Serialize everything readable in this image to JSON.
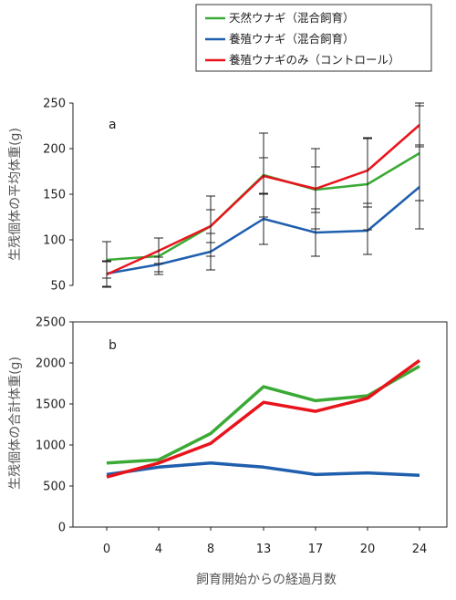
{
  "chart_data": [
    {
      "id": "a",
      "type": "line",
      "panel_label": "a",
      "ylabel": "生残個体の平均体重(g)",
      "xlabel": "",
      "categories": [
        "0",
        "4",
        "8",
        "13",
        "17",
        "20",
        "24"
      ],
      "ylim": [
        50,
        250
      ],
      "yticks": [
        50,
        100,
        150,
        200,
        250
      ],
      "error_bars": true,
      "series": [
        {
          "name": "天然ウナギ（混合飼育）",
          "color": "#3aaa35",
          "values": [
            78,
            82,
            115,
            171,
            155,
            161,
            195
          ],
          "error": [
            20,
            20,
            18,
            46,
            25,
            50,
            52
          ]
        },
        {
          "name": "養殖ウナギ（混合飼育）",
          "color": "#1f5fae",
          "values": [
            63,
            73,
            87,
            123,
            108,
            110,
            158
          ],
          "error": [
            14,
            8,
            20,
            28,
            26,
            26,
            46
          ]
        },
        {
          "name": "養殖ウナギのみ（コントロール）",
          "color": "#e8141c",
          "values": [
            62,
            88,
            115,
            170,
            156,
            176,
            226
          ],
          "error": [
            14,
            14,
            33,
            20,
            44,
            36,
            24
          ]
        }
      ]
    },
    {
      "id": "b",
      "type": "line",
      "panel_label": "b",
      "ylabel": "生残個体の合計体重(g)",
      "xlabel": "飼育開始からの経過月数",
      "categories": [
        "0",
        "4",
        "8",
        "13",
        "17",
        "20",
        "24"
      ],
      "ylim": [
        0,
        2500
      ],
      "yticks": [
        0,
        500,
        1000,
        1500,
        2000,
        2500
      ],
      "series": [
        {
          "name": "天然ウナギ（混合飼育）",
          "color": "#3aaa35",
          "values": [
            780,
            820,
            1140,
            1710,
            1540,
            1600,
            1960
          ]
        },
        {
          "name": "養殖ウナギ（混合飼育）",
          "color": "#1f5fae",
          "values": [
            640,
            730,
            780,
            730,
            640,
            660,
            630
          ]
        },
        {
          "name": "養殖ウナギのみ（コントロール）",
          "color": "#e8141c",
          "values": [
            610,
            780,
            1020,
            1520,
            1410,
            1570,
            2030
          ]
        }
      ]
    }
  ],
  "legend": {
    "placement": "top-right",
    "items": [
      {
        "label": "天然ウナギ（混合飼育）",
        "color": "#3aaa35"
      },
      {
        "label": "養殖ウナギ（混合飼育）",
        "color": "#1f5fae"
      },
      {
        "label": "養殖ウナギのみ（コントロール）",
        "color": "#e8141c"
      }
    ]
  }
}
